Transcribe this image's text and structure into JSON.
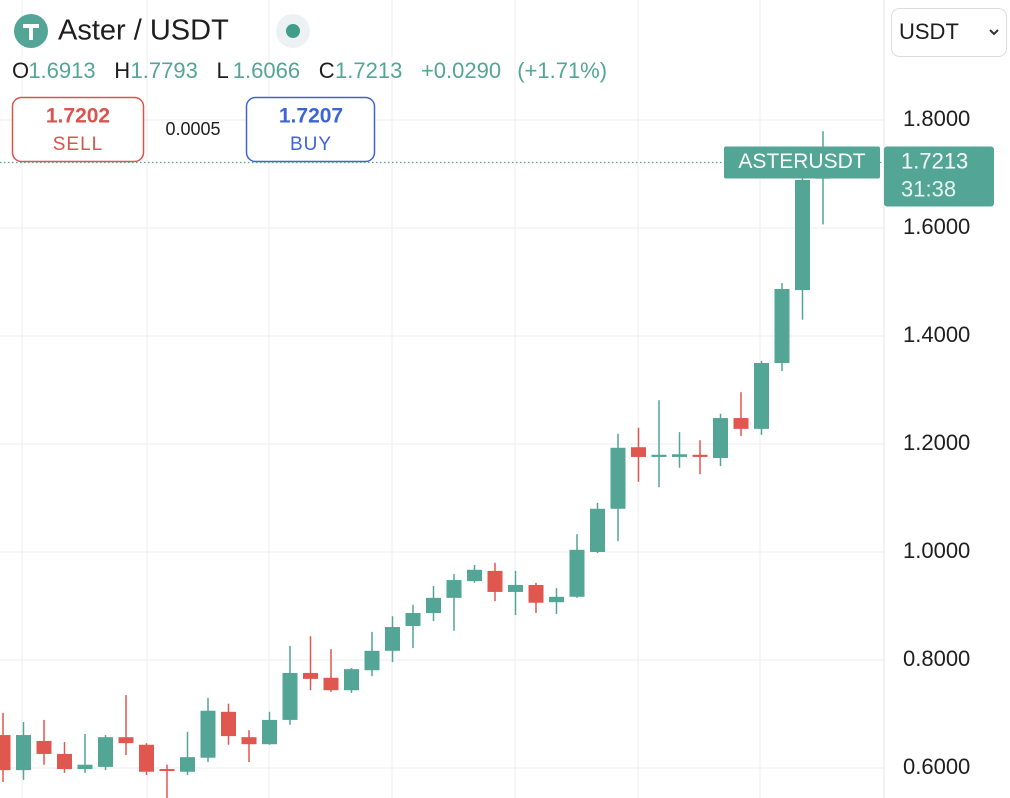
{
  "header": {
    "symbol": "Aster / USDT",
    "ohlc_keys": [
      "O",
      "H",
      "L",
      "C"
    ],
    "change": "+0.0290",
    "change_pct": "(+1.71%)"
  },
  "trade": {
    "sell_price": "1.7202",
    "sell_label": "SELL",
    "spread": "0.0005",
    "buy_price": "1.7207",
    "buy_label": "BUY"
  },
  "currency": "USDT",
  "chart_data": {
    "type": "candlestick",
    "open": [
      0.661,
      0.596,
      0.65,
      0.626,
      0.598,
      0.602,
      0.657,
      0.643,
      0.598,
      0.593,
      0.619,
      0.704,
      0.657,
      0.644,
      0.689,
      0.776,
      0.767,
      0.744,
      0.781,
      0.817,
      0.863,
      0.887,
      0.915,
      0.946,
      0.965,
      0.926,
      0.939,
      0.907,
      0.917,
      1.0,
      1.08,
      1.194,
      1.176,
      1.176,
      1.18,
      1.174,
      1.248,
      1.228,
      1.35,
      1.485,
      1.6913
    ],
    "high": [
      0.702,
      0.685,
      0.689,
      0.648,
      0.663,
      0.661,
      0.735,
      0.646,
      0.606,
      0.667,
      0.73,
      0.719,
      0.67,
      0.704,
      0.826,
      0.844,
      0.82,
      0.785,
      0.852,
      0.881,
      0.902,
      0.937,
      0.959,
      0.976,
      0.98,
      0.965,
      0.943,
      0.933,
      1.033,
      1.091,
      1.219,
      1.23,
      1.281,
      1.222,
      1.207,
      1.256,
      1.296,
      1.354,
      1.498,
      1.693,
      1.7793
    ],
    "low": [
      0.574,
      0.578,
      0.606,
      0.591,
      0.591,
      0.596,
      0.624,
      0.587,
      0.544,
      0.587,
      0.611,
      0.643,
      0.611,
      0.643,
      0.68,
      0.744,
      0.741,
      0.739,
      0.77,
      0.796,
      0.822,
      0.872,
      0.854,
      0.943,
      0.909,
      0.883,
      0.887,
      0.885,
      0.915,
      0.998,
      1.02,
      1.13,
      1.12,
      1.156,
      1.144,
      1.159,
      1.215,
      1.217,
      1.335,
      1.43,
      1.6066
    ],
    "close": [
      0.596,
      0.661,
      0.626,
      0.598,
      0.606,
      0.657,
      0.646,
      0.593,
      0.596,
      0.62,
      0.706,
      0.659,
      0.644,
      0.689,
      0.776,
      0.765,
      0.744,
      0.783,
      0.817,
      0.861,
      0.887,
      0.915,
      0.948,
      0.967,
      0.926,
      0.939,
      0.906,
      0.917,
      1.004,
      1.08,
      1.193,
      1.176,
      1.18,
      1.181,
      1.176,
      1.248,
      1.228,
      1.35,
      1.487,
      1.689,
      1.7213
    ],
    "up_color": "#53a595",
    "down_color": "#e0574f",
    "ylim": [
      0.5444,
      2.0222
    ],
    "yticks": [
      {
        "value": 0.6,
        "label": "0.6000"
      },
      {
        "value": 0.8,
        "label": "0.8000"
      },
      {
        "value": 1.0,
        "label": "1.0000"
      },
      {
        "value": 1.2,
        "label": "1.2000"
      },
      {
        "value": 1.4,
        "label": "1.4000"
      },
      {
        "value": 1.6,
        "label": "1.6000"
      },
      {
        "value": 1.8,
        "label": "1.8000"
      }
    ],
    "grid": true,
    "price_line_label": "ASTERUSDT",
    "countdown": "31:38"
  }
}
